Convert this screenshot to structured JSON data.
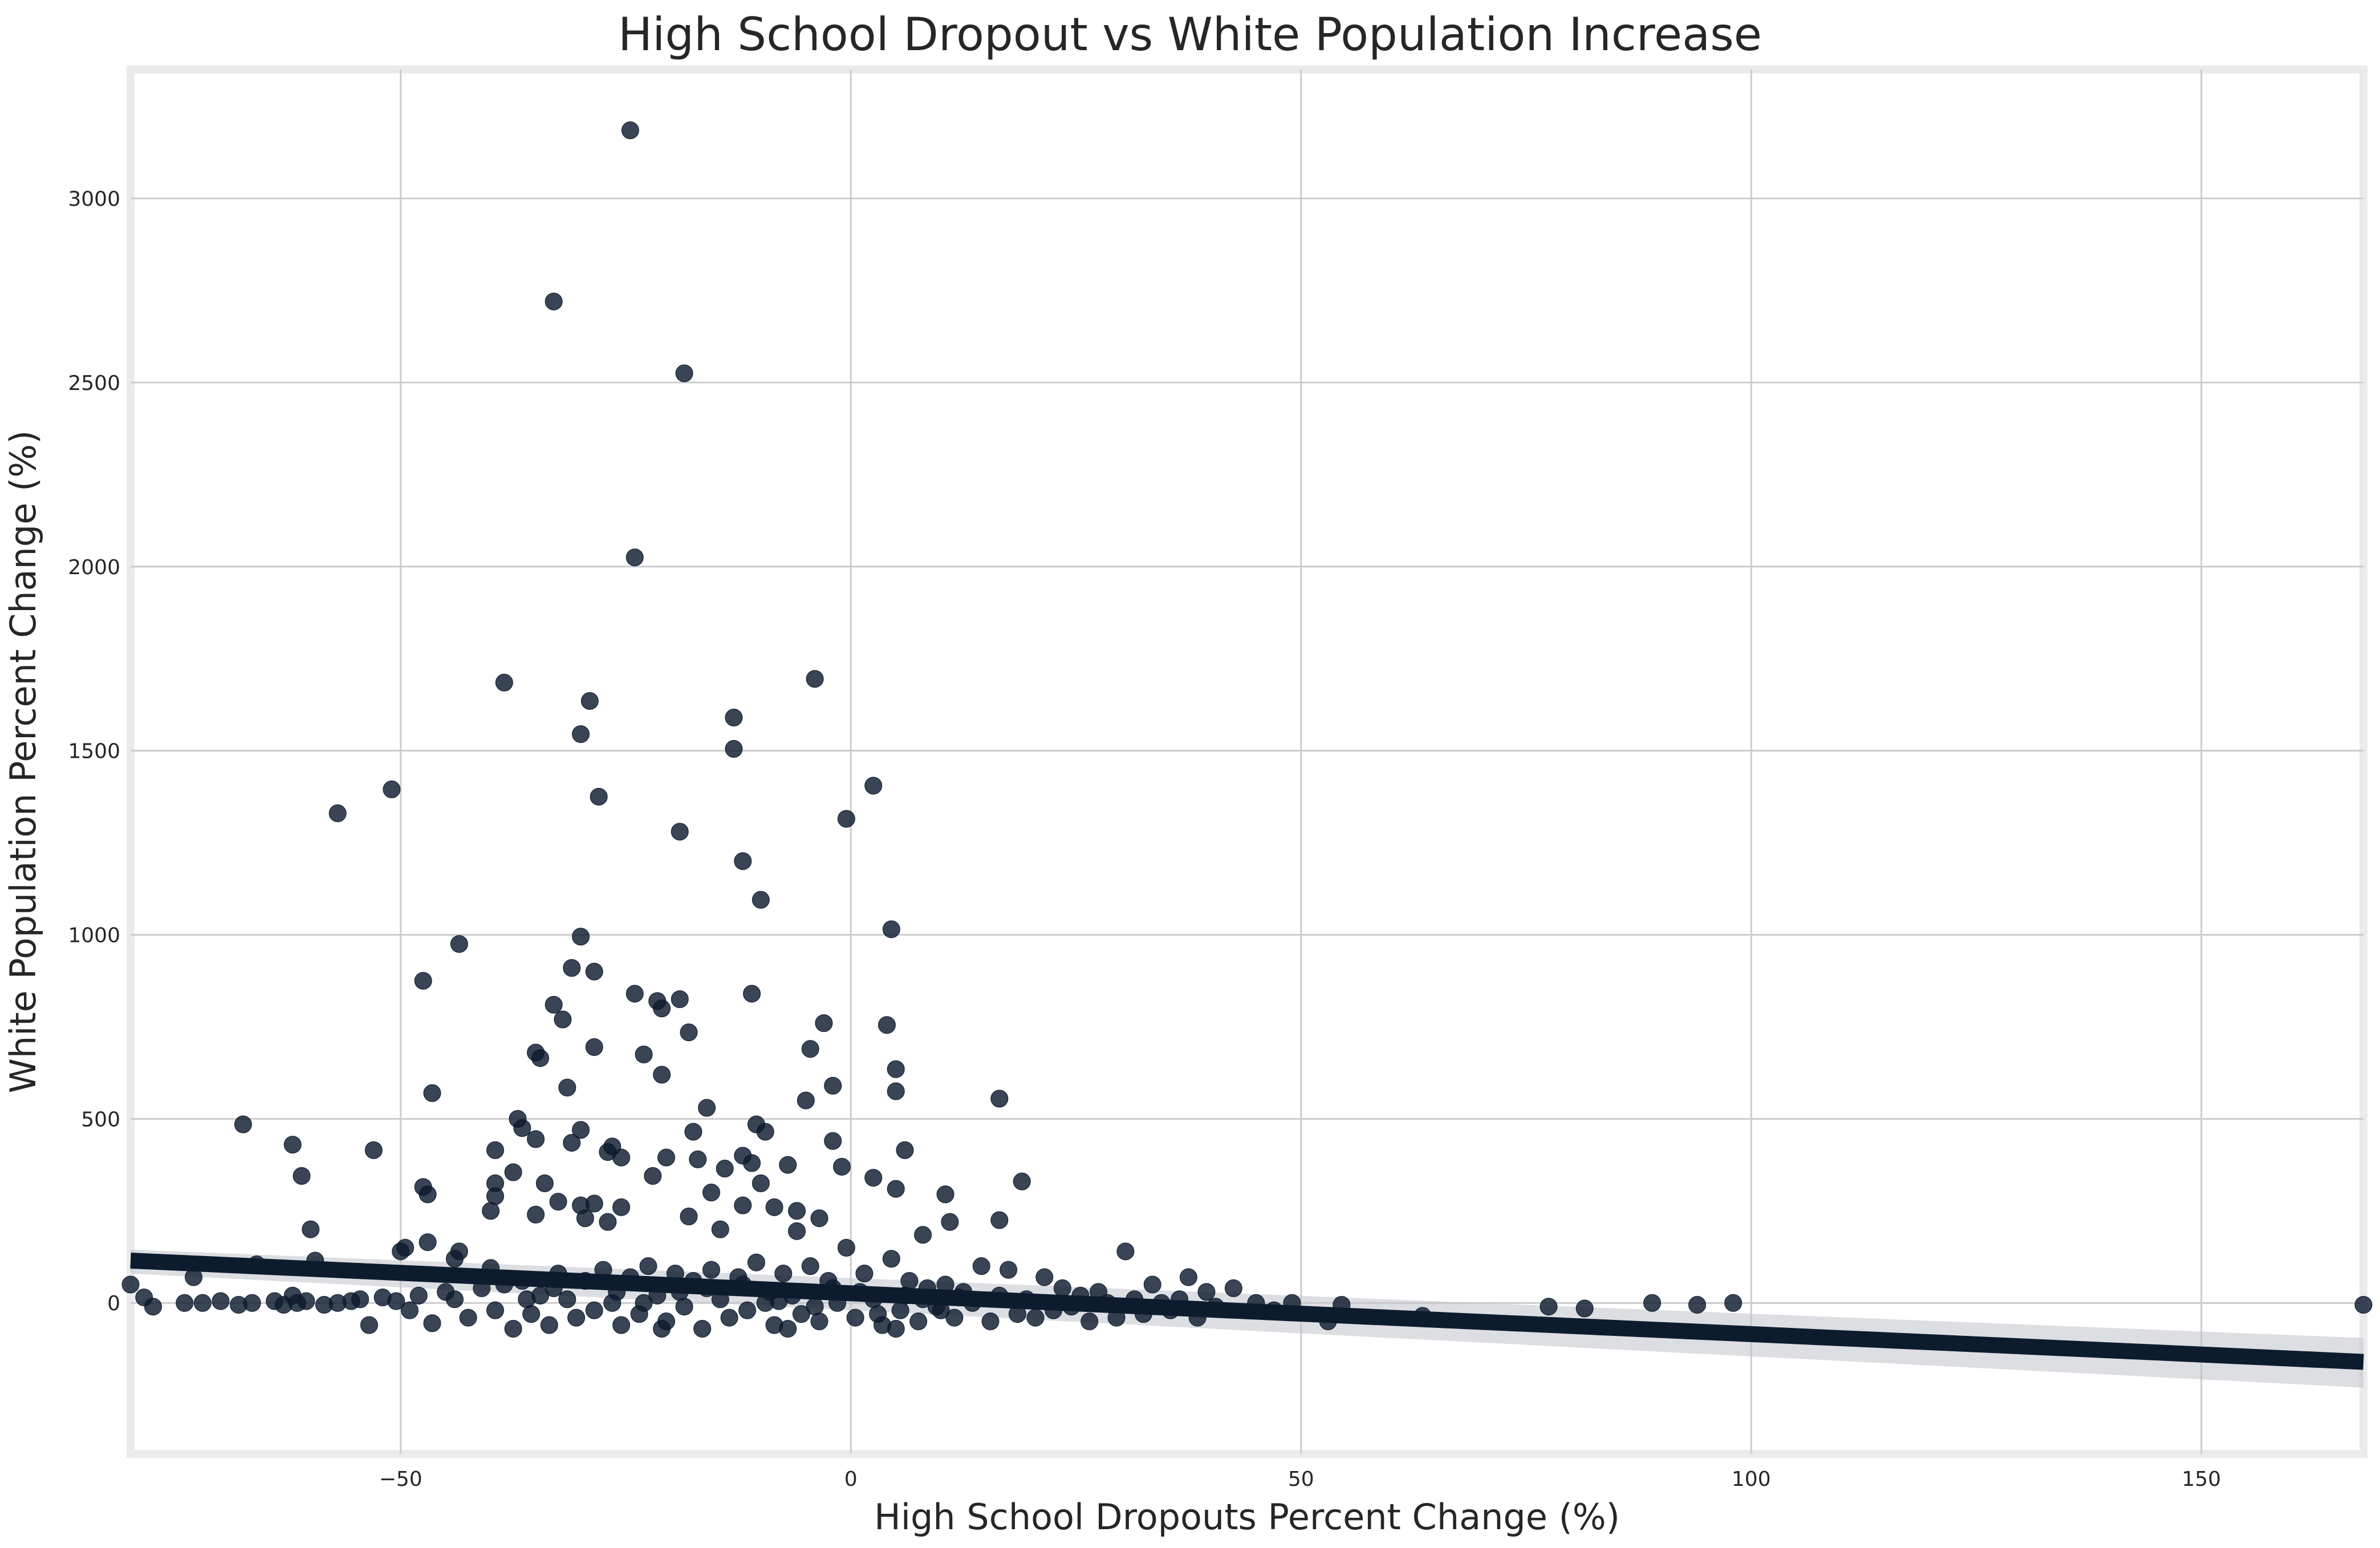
{
  "chart_data": {
    "type": "scatter",
    "title": "High School Dropout vs White Population Increase",
    "xlabel": "High School Dropouts Percent Change (%)",
    "ylabel": "White Population Percent Change (%)",
    "xlim": [
      -80,
      168
    ],
    "ylim": [
      -410,
      3350
    ],
    "xticks": [
      -50,
      0,
      50,
      100,
      150
    ],
    "yticks": [
      0,
      500,
      1000,
      1500,
      2000,
      2500,
      3000
    ],
    "grid": true,
    "legend": "none",
    "colors": {
      "points": "#0d1b2e",
      "regression": "#0d1b2e",
      "band": "#bfc3ca",
      "grid": "#cccccc",
      "frame": "#ebebeb"
    },
    "regression": {
      "x": [
        -80,
        168
      ],
      "y": [
        115,
        -160
      ],
      "ci_lower": [
        80,
        -230
      ],
      "ci_upper": [
        145,
        -95
      ]
    },
    "points": [
      [
        -24.5,
        3185
      ],
      [
        -33,
        2720
      ],
      [
        -18.5,
        2525
      ],
      [
        -24,
        2025
      ],
      [
        -38.5,
        1685
      ],
      [
        -29,
        1635
      ],
      [
        -4,
        1695
      ],
      [
        -13,
        1590
      ],
      [
        -30,
        1545
      ],
      [
        -13,
        1505
      ],
      [
        -51,
        1395
      ],
      [
        2.5,
        1405
      ],
      [
        -28,
        1375
      ],
      [
        -57,
        1330
      ],
      [
        -0.5,
        1315
      ],
      [
        -19,
        1280
      ],
      [
        -12,
        1200
      ],
      [
        -10,
        1095
      ],
      [
        4.5,
        1015
      ],
      [
        -30,
        995
      ],
      [
        -43.5,
        975
      ],
      [
        -31,
        910
      ],
      [
        -28.5,
        900
      ],
      [
        -47.5,
        875
      ],
      [
        -11,
        840
      ],
      [
        -24,
        840
      ],
      [
        -21.5,
        820
      ],
      [
        -19,
        825
      ],
      [
        -21,
        800
      ],
      [
        -33,
        810
      ],
      [
        -32,
        770
      ],
      [
        -3,
        760
      ],
      [
        4,
        755
      ],
      [
        -18,
        735
      ],
      [
        -28.5,
        695
      ],
      [
        -35,
        680
      ],
      [
        -23,
        675
      ],
      [
        -34.5,
        665
      ],
      [
        -4.5,
        690
      ],
      [
        5,
        635
      ],
      [
        -21,
        620
      ],
      [
        -2,
        590
      ],
      [
        -31.5,
        585
      ],
      [
        -46.5,
        570
      ],
      [
        5,
        575
      ],
      [
        -5,
        550
      ],
      [
        16.5,
        555
      ],
      [
        -16,
        530
      ],
      [
        -37,
        500
      ],
      [
        -67.5,
        485
      ],
      [
        -36.5,
        475
      ],
      [
        -9.5,
        465
      ],
      [
        -35,
        445
      ],
      [
        -31,
        435
      ],
      [
        -26.5,
        425
      ],
      [
        -17.5,
        465
      ],
      [
        -10.5,
        485
      ],
      [
        -30,
        470
      ],
      [
        -2,
        440
      ],
      [
        -62,
        430
      ],
      [
        -53,
        415
      ],
      [
        6,
        415
      ],
      [
        -39.5,
        415
      ],
      [
        -27,
        410
      ],
      [
        -25.5,
        395
      ],
      [
        -12,
        400
      ],
      [
        -20.5,
        395
      ],
      [
        -11,
        380
      ],
      [
        -17,
        390
      ],
      [
        -7,
        375
      ],
      [
        -14,
        365
      ],
      [
        -1,
        370
      ],
      [
        -37.5,
        355
      ],
      [
        -22,
        345
      ],
      [
        2.5,
        340
      ],
      [
        -61,
        345
      ],
      [
        -10,
        325
      ],
      [
        -34,
        325
      ],
      [
        -47.5,
        315
      ],
      [
        -39.5,
        325
      ],
      [
        19,
        330
      ],
      [
        5,
        310
      ],
      [
        -47,
        295
      ],
      [
        -39.5,
        290
      ],
      [
        -15.5,
        300
      ],
      [
        10.5,
        295
      ],
      [
        -32.5,
        275
      ],
      [
        -28.5,
        270
      ],
      [
        -12,
        265
      ],
      [
        -30,
        265
      ],
      [
        -25.5,
        260
      ],
      [
        -8.5,
        260
      ],
      [
        -6,
        250
      ],
      [
        -40,
        250
      ],
      [
        -43.5,
        140
      ],
      [
        -35,
        240
      ],
      [
        -29.5,
        230
      ],
      [
        -27,
        220
      ],
      [
        -18,
        235
      ],
      [
        -3.5,
        230
      ],
      [
        -60,
        200
      ],
      [
        16.5,
        225
      ],
      [
        11,
        220
      ],
      [
        -14.5,
        200
      ],
      [
        -6,
        195
      ],
      [
        8,
        185
      ],
      [
        -49.5,
        150
      ],
      [
        -47,
        165
      ],
      [
        -50,
        140
      ],
      [
        -44,
        120
      ],
      [
        -59.5,
        115
      ],
      [
        -66,
        105
      ],
      [
        -40,
        95
      ],
      [
        -73,
        70
      ],
      [
        -62,
        20
      ],
      [
        -80,
        50
      ],
      [
        -78.5,
        15
      ],
      [
        -77.5,
        -10
      ],
      [
        -74,
        0
      ],
      [
        -72,
        0
      ],
      [
        -70,
        5
      ],
      [
        -68,
        -5
      ],
      [
        -66.5,
        0
      ],
      [
        -64,
        5
      ],
      [
        -63,
        -5
      ],
      [
        -61.5,
        0
      ],
      [
        -60.5,
        5
      ],
      [
        -58.5,
        -5
      ],
      [
        -57,
        0
      ],
      [
        -55.5,
        5
      ],
      [
        -54.5,
        10
      ],
      [
        -53.5,
        -60
      ],
      [
        -52,
        15
      ],
      [
        -50.5,
        5
      ],
      [
        -49,
        -20
      ],
      [
        -48,
        20
      ],
      [
        -46.5,
        -55
      ],
      [
        -45,
        30
      ],
      [
        -44,
        10
      ],
      [
        -42.5,
        -40
      ],
      [
        -41,
        40
      ],
      [
        -39.5,
        -20
      ],
      [
        -38.5,
        50
      ],
      [
        -37.5,
        -70
      ],
      [
        -36.5,
        60
      ],
      [
        -35.5,
        -30
      ],
      [
        -34.5,
        20
      ],
      [
        -33.5,
        -60
      ],
      [
        -32.5,
        80
      ],
      [
        -31.5,
        10
      ],
      [
        -30.5,
        -40
      ],
      [
        -29.5,
        60
      ],
      [
        -28.5,
        -20
      ],
      [
        -27.5,
        90
      ],
      [
        -26.5,
        0
      ],
      [
        -25.5,
        -60
      ],
      [
        -24.5,
        70
      ],
      [
        -23.5,
        -30
      ],
      [
        -22.5,
        100
      ],
      [
        -21.5,
        20
      ],
      [
        -20.5,
        -50
      ],
      [
        -19.5,
        80
      ],
      [
        -18.5,
        -10
      ],
      [
        -17.5,
        60
      ],
      [
        -16.5,
        -70
      ],
      [
        -15.5,
        90
      ],
      [
        -14.5,
        10
      ],
      [
        -13.5,
        -40
      ],
      [
        -12.5,
        70
      ],
      [
        -11.5,
        -20
      ],
      [
        -10.5,
        110
      ],
      [
        -9.5,
        0
      ],
      [
        -8.5,
        -60
      ],
      [
        -7.5,
        80
      ],
      [
        -6.5,
        20
      ],
      [
        -5.5,
        -30
      ],
      [
        -4.5,
        100
      ],
      [
        -3.5,
        -50
      ],
      [
        -2.5,
        60
      ],
      [
        -1.5,
        0
      ],
      [
        -0.5,
        150
      ],
      [
        0.5,
        -40
      ],
      [
        1.5,
        80
      ],
      [
        2.5,
        10
      ],
      [
        3.5,
        -60
      ],
      [
        4.5,
        120
      ],
      [
        5.5,
        -20
      ],
      [
        6.5,
        60
      ],
      [
        7.5,
        -50
      ],
      [
        8.5,
        40
      ],
      [
        9.5,
        -10
      ],
      [
        10.5,
        50
      ],
      [
        11.5,
        -40
      ],
      [
        12.5,
        30
      ],
      [
        13.5,
        0
      ],
      [
        14.5,
        100
      ],
      [
        15.5,
        -50
      ],
      [
        16.5,
        20
      ],
      [
        17.5,
        90
      ],
      [
        18.5,
        -30
      ],
      [
        19.5,
        10
      ],
      [
        20.5,
        -40
      ],
      [
        21.5,
        70
      ],
      [
        22.5,
        -20
      ],
      [
        23.5,
        40
      ],
      [
        24.5,
        -10
      ],
      [
        25.5,
        20
      ],
      [
        26.5,
        -50
      ],
      [
        27.5,
        30
      ],
      [
        28.5,
        0
      ],
      [
        29.5,
        -40
      ],
      [
        30.5,
        140
      ],
      [
        31.5,
        10
      ],
      [
        32.5,
        -30
      ],
      [
        33.5,
        50
      ],
      [
        34.5,
        0
      ],
      [
        35.5,
        -20
      ],
      [
        36.5,
        10
      ],
      [
        37.5,
        70
      ],
      [
        38.5,
        -40
      ],
      [
        39.5,
        30
      ],
      [
        40.5,
        -10
      ],
      [
        42.5,
        40
      ],
      [
        45,
        0
      ],
      [
        47,
        -20
      ],
      [
        49,
        0
      ],
      [
        53,
        -50
      ],
      [
        54.5,
        -5
      ],
      [
        63.5,
        -35
      ],
      [
        77.5,
        -10
      ],
      [
        81.5,
        -15
      ],
      [
        89,
        0
      ],
      [
        94,
        -5
      ],
      [
        98,
        0
      ],
      [
        168,
        -5
      ],
      [
        -36,
        10
      ],
      [
        -26,
        30
      ],
      [
        -21,
        -70
      ],
      [
        -19,
        30
      ],
      [
        -16,
        40
      ],
      [
        -9,
        30
      ],
      [
        -7,
        -70
      ],
      [
        -2,
        40
      ],
      [
        1,
        30
      ],
      [
        3,
        -30
      ],
      [
        6,
        20
      ],
      [
        8,
        10
      ],
      [
        10,
        -20
      ],
      [
        12,
        15
      ],
      [
        -33,
        40
      ],
      [
        -12,
        50
      ],
      [
        -4,
        -10
      ],
      [
        5,
        -70
      ],
      [
        -23,
        0
      ],
      [
        -8,
        5
      ]
    ]
  }
}
